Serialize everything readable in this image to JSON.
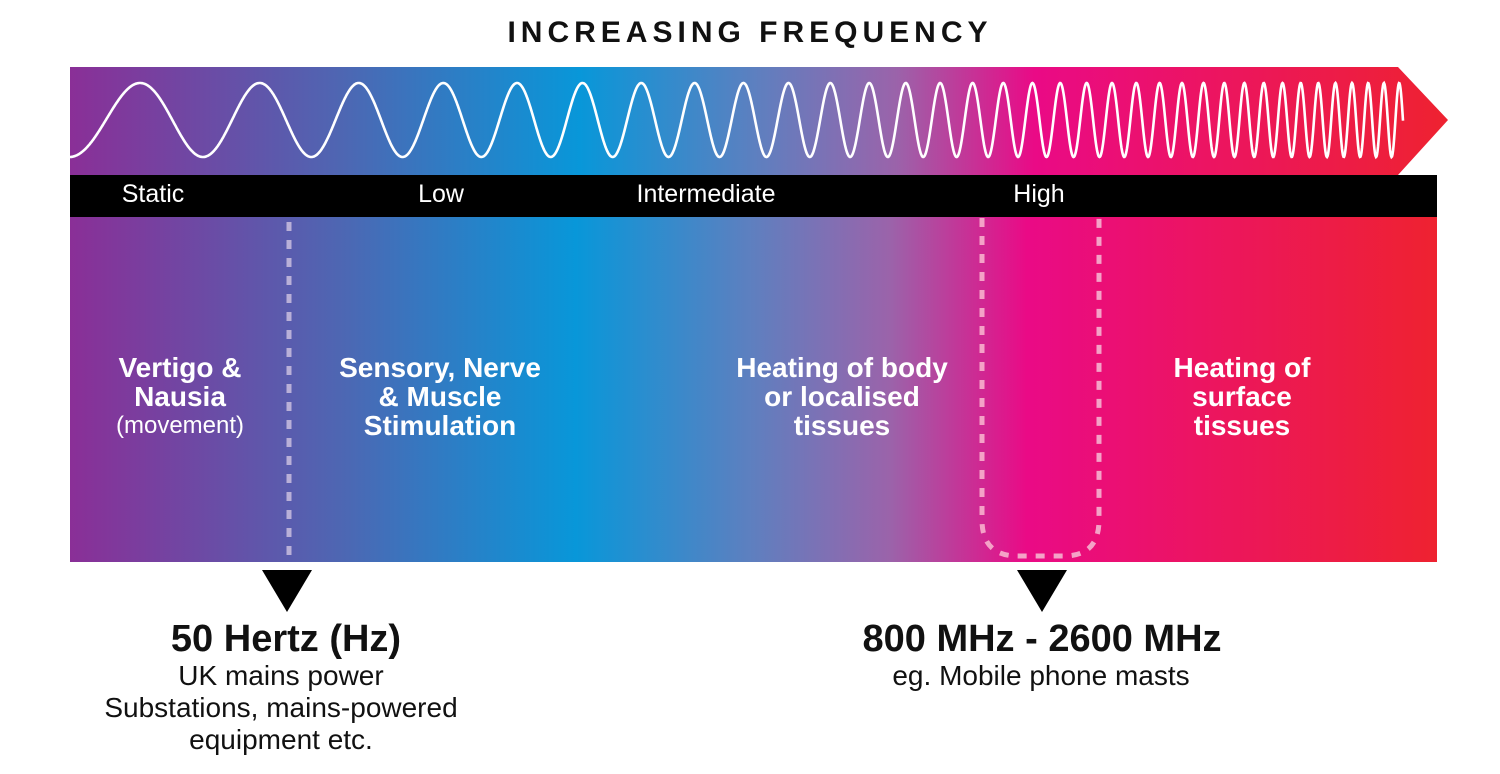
{
  "title": "INCREASING FREQUENCY",
  "bands": [
    {
      "label": "Static"
    },
    {
      "label": "Low"
    },
    {
      "label": "Intermediate"
    },
    {
      "label": "High"
    }
  ],
  "effects": [
    {
      "lines": [
        "Vertigo &",
        "Nausia"
      ],
      "sub": "(movement)"
    },
    {
      "lines": [
        "Sensory, Nerve",
        "& Muscle",
        "Stimulation"
      ]
    },
    {
      "lines": [
        "Heating of body",
        "or localised",
        "tissues"
      ]
    },
    {
      "lines": [
        "Heating of",
        "surface",
        "tissues"
      ]
    }
  ],
  "markers": [
    {
      "title": "50 Hertz (Hz)",
      "desc": [
        "UK mains power",
        "Substations, mains-powered",
        "equipment etc."
      ]
    },
    {
      "title": "800 MHz - 2600 MHz",
      "desc": [
        "eg. Mobile phone masts"
      ]
    }
  ],
  "colors": {
    "purple": "#8a2f97",
    "blue": "#0897d9",
    "magenta": "#ea0a86",
    "red": "#ee2230",
    "black": "#000000"
  }
}
